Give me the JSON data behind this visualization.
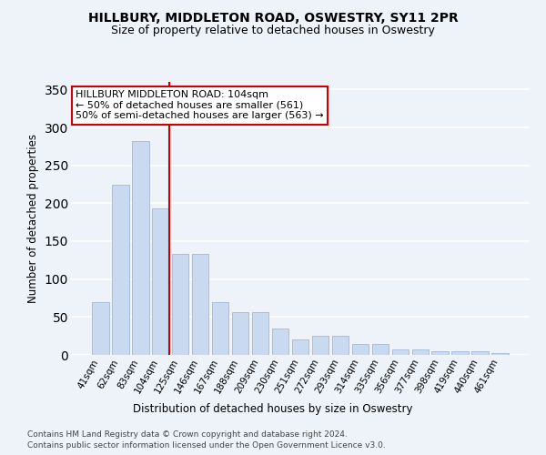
{
  "title": "HILLBURY, MIDDLETON ROAD, OSWESTRY, SY11 2PR",
  "subtitle": "Size of property relative to detached houses in Oswestry",
  "xlabel": "Distribution of detached houses by size in Oswestry",
  "ylabel": "Number of detached properties",
  "categories": [
    "41sqm",
    "62sqm",
    "83sqm",
    "104sqm",
    "125sqm",
    "146sqm",
    "167sqm",
    "188sqm",
    "209sqm",
    "230sqm",
    "251sqm",
    "272sqm",
    "293sqm",
    "314sqm",
    "335sqm",
    "356sqm",
    "377sqm",
    "398sqm",
    "419sqm",
    "440sqm",
    "461sqm"
  ],
  "values": [
    70,
    224,
    282,
    193,
    133,
    133,
    70,
    57,
    57,
    35,
    20,
    25,
    25,
    14,
    14,
    7,
    7,
    5,
    5,
    5,
    3
  ],
  "bar_color": "#c9d9ef",
  "bar_edge_color": "#a0b8d8",
  "red_line_index": 3,
  "annotation_title": "HILLBURY MIDDLETON ROAD: 104sqm",
  "annotation_line1": "← 50% of detached houses are smaller (561)",
  "annotation_line2": "50% of semi-detached houses are larger (563) →",
  "annotation_box_color": "#ffffff",
  "annotation_border_color": "#cc0000",
  "red_line_color": "#cc0000",
  "ylim": [
    0,
    360
  ],
  "yticks": [
    0,
    50,
    100,
    150,
    200,
    250,
    300,
    350
  ],
  "footer_line1": "Contains HM Land Registry data © Crown copyright and database right 2024.",
  "footer_line2": "Contains public sector information licensed under the Open Government Licence v3.0.",
  "background_color": "#eef2f9",
  "grid_color": "#ffffff",
  "title_fontsize": 10,
  "subtitle_fontsize": 9,
  "axis_label_fontsize": 8.5,
  "tick_fontsize": 7.5,
  "annotation_fontsize": 8,
  "footer_fontsize": 6.5
}
